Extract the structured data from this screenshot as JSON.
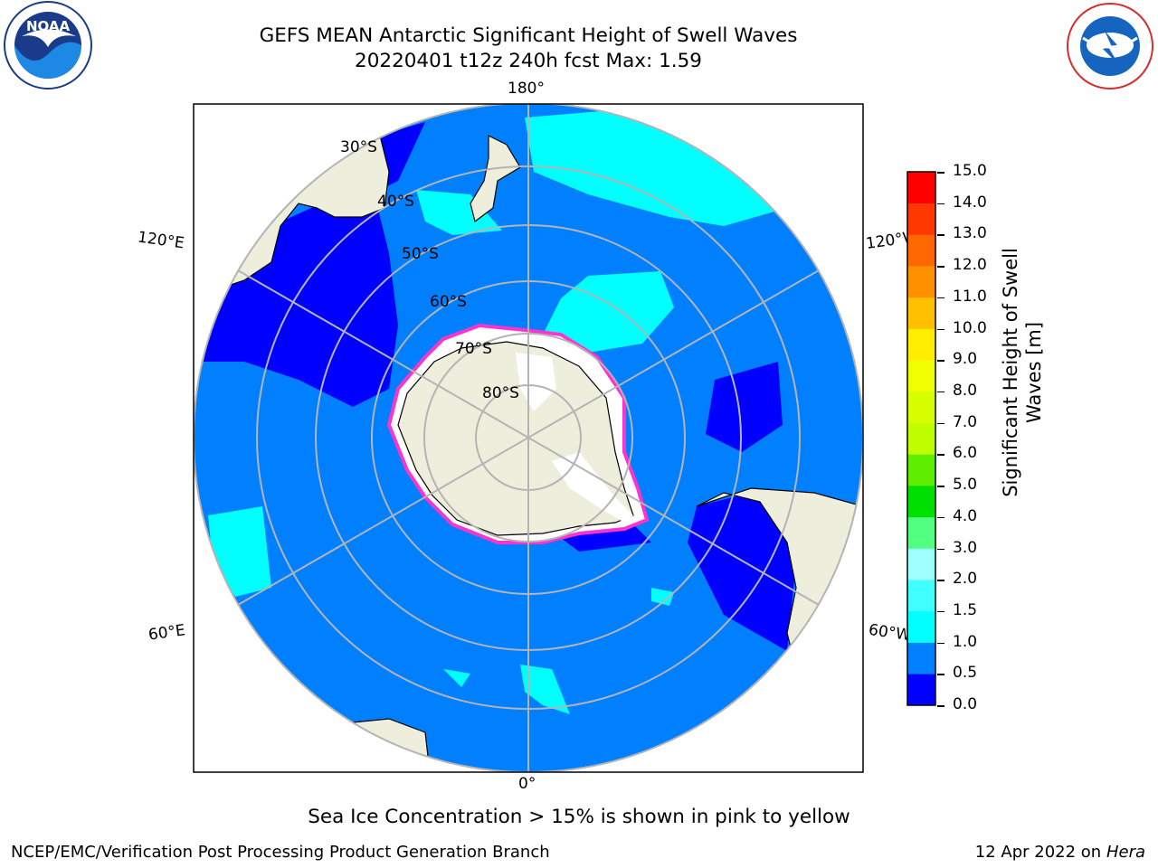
{
  "title": {
    "line1": "GEFS MEAN Antarctic Significant Height of Swell Waves",
    "line2": "20220401 t12z 240h fcst   Max: 1.59"
  },
  "logos": {
    "left": {
      "text": "NOAA",
      "icon": "noaa-logo"
    },
    "right": {
      "text": "NATIONAL WEATHER SERVICE",
      "icon": "nws-logo"
    }
  },
  "map": {
    "projection": "south-polar-stereographic",
    "longitude_labels": {
      "top": "180°",
      "bottom": "0°",
      "upper_left": "120°E",
      "upper_right": "120°W",
      "lower_left": "60°E",
      "lower_right": "60°W"
    },
    "latitude_labels": [
      "30°S",
      "40°S",
      "50°S",
      "60°S",
      "70°S",
      "80°S"
    ],
    "colors": {
      "ocean_swell_0_5_1_0": "#0080ff",
      "ocean_swell_0_0_5": "#0000ff",
      "ocean_swell_1_0_1_5": "#00ffff",
      "land": "#eeeedc",
      "sea_ice_edge": "#ff33cc",
      "sea_ice_fill": "#ffffff",
      "gridline": "#b4b4b4"
    }
  },
  "colorbar": {
    "label": "Significant Height of Swell Waves [m]",
    "label_line1": "Significant Height of Swell",
    "label_line2": "Waves [m]",
    "ticks": [
      "15.0",
      "14.0",
      "13.0",
      "12.0",
      "11.0",
      "10.0",
      "9.0",
      "8.0",
      "7.0",
      "6.0",
      "5.0",
      "4.0",
      "3.0",
      "2.0",
      "1.5",
      "1.0",
      "0.5",
      "0.0"
    ],
    "bands_bottom_to_top": [
      {
        "range": "0.0-0.5",
        "color": "#0000ff"
      },
      {
        "range": "0.5-1.0",
        "color": "#0080ff"
      },
      {
        "range": "1.0-1.5",
        "color": "#00ffff"
      },
      {
        "range": "1.5-2.0",
        "color": "#40ffff"
      },
      {
        "range": "2.0-3.0",
        "color": "#a0ffff"
      },
      {
        "range": "3.0-4.0",
        "color": "#50ff80"
      },
      {
        "range": "4.0-5.0",
        "color": "#00e000"
      },
      {
        "range": "5.0-6.0",
        "color": "#60ee00"
      },
      {
        "range": "6.0-7.0",
        "color": "#c0ff00"
      },
      {
        "range": "7.0-8.0",
        "color": "#d8ff00"
      },
      {
        "range": "8.0-9.0",
        "color": "#f0ff00"
      },
      {
        "range": "9.0-10.0",
        "color": "#ffee00"
      },
      {
        "range": "10.0-11.0",
        "color": "#ffc000"
      },
      {
        "range": "11.0-12.0",
        "color": "#ff9000"
      },
      {
        "range": "12.0-13.0",
        "color": "#ff6800"
      },
      {
        "range": "13.0-14.0",
        "color": "#ff3800"
      },
      {
        "range": "14.0-15.0",
        "color": "#ff0000"
      }
    ]
  },
  "notes": {
    "sea_ice": "Sea Ice Concentration > 15% is shown in pink to yellow"
  },
  "footer": {
    "left": "NCEP/EMC/Verification Post Processing Product Generation Branch",
    "right_date": "12 Apr 2022 on ",
    "right_machine": "Hera"
  }
}
